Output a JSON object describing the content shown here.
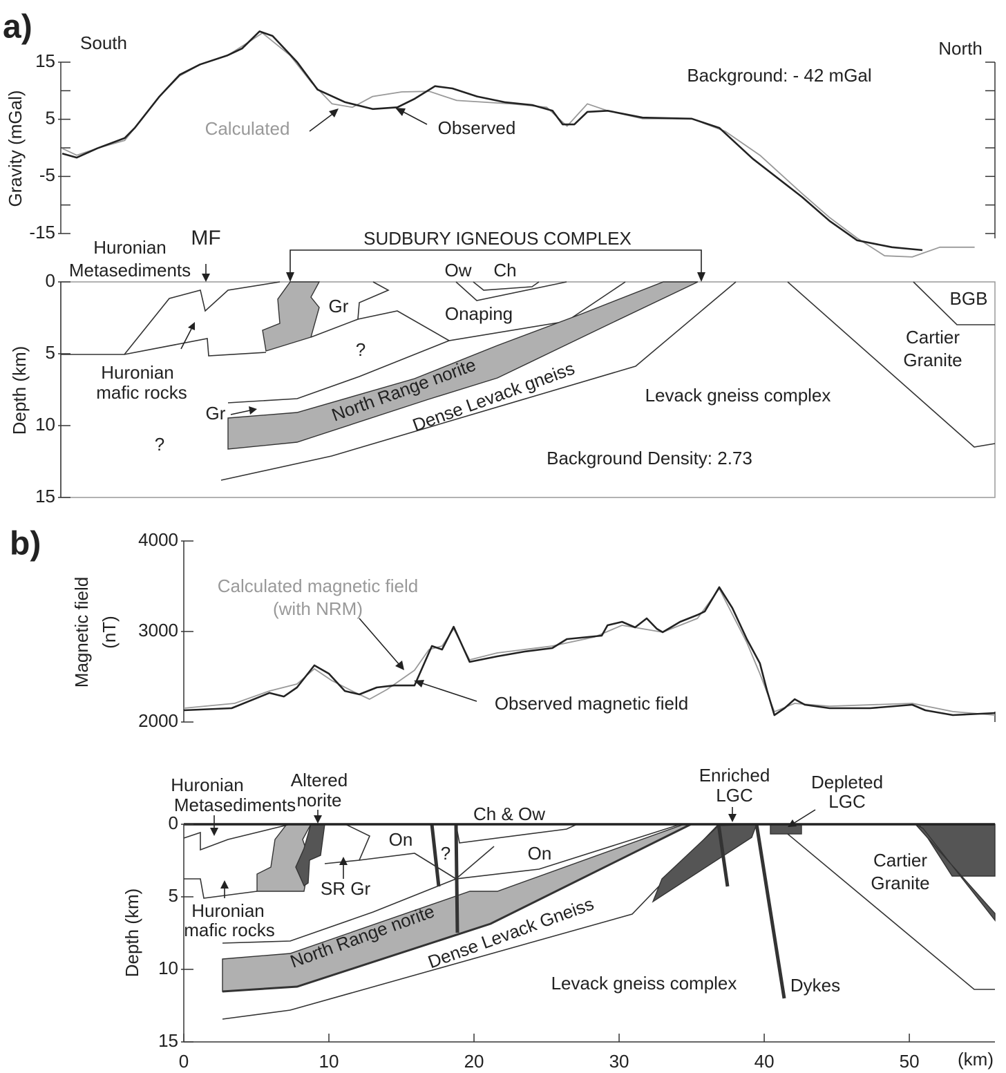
{
  "panels": [
    "a)",
    "b)"
  ],
  "chart_data": [
    {
      "type": "line",
      "ylabel": "Gravity (mGal)",
      "left_label": "South",
      "right_label": "North",
      "note": "Background: - 42 mGal",
      "xlim": [
        -8.5,
        55.9
      ],
      "ylim": [
        -15,
        15
      ],
      "yticks": [
        -15,
        -5,
        5,
        15
      ],
      "minor_yticks": [
        -10,
        0,
        10
      ],
      "right_axis": true,
      "series": [
        {
          "name": "Observed",
          "color": "#222222",
          "x": [
            -8.4,
            -7.4,
            -6.0,
            -4.1,
            -3.4,
            -1.7,
            -0.3,
            1.1,
            3.0,
            4.0,
            5.2,
            6.1,
            7.8,
            9.2,
            11.1,
            13.0,
            14.7,
            15.9,
            17.3,
            18.5,
            20.2,
            22.1,
            24.0,
            25.4,
            26.1,
            26.9,
            27.8,
            29.2,
            31.6,
            35.0,
            36.9,
            39.2,
            42.6,
            44.5,
            46.4,
            48.8,
            50.9
          ],
          "values": [
            -1.0,
            -1.7,
            -0.1,
            1.7,
            3.5,
            9.0,
            12.8,
            14.6,
            16.2,
            17.4,
            20.4,
            19.6,
            15.0,
            10.2,
            8.0,
            6.8,
            7.1,
            8.6,
            10.8,
            10.4,
            9.0,
            8.0,
            7.5,
            6.5,
            4.1,
            4.1,
            6.3,
            6.5,
            5.3,
            5.1,
            3.5,
            -1.9,
            -8.6,
            -12.8,
            -16.2,
            -17.4,
            -17.9
          ]
        },
        {
          "name": "Calculated",
          "color": "#999999",
          "x": [
            -8.4,
            -7.4,
            -6.0,
            -4.1,
            -3.4,
            -1.7,
            -0.3,
            1.1,
            3.0,
            4.5,
            5.4,
            7.3,
            8.8,
            10.2,
            11.6,
            13.0,
            15.0,
            16.9,
            18.8,
            20.7,
            22.6,
            25.0,
            26.4,
            27.8,
            29.2,
            31.6,
            35.0,
            37.3,
            39.7,
            42.6,
            44.5,
            46.4,
            48.3,
            50.2,
            52.1,
            54.5
          ],
          "values": [
            -0.1,
            -1.3,
            -0.1,
            1.3,
            3.5,
            9.0,
            12.6,
            14.6,
            16.2,
            18.6,
            20.1,
            16.2,
            11.4,
            7.7,
            7.1,
            9.0,
            9.8,
            9.9,
            8.3,
            8.0,
            7.7,
            7.1,
            3.8,
            7.7,
            6.5,
            5.1,
            5.1,
            2.9,
            -1.3,
            -8.0,
            -12.2,
            -15.8,
            -18.9,
            -19.1,
            -17.4,
            -17.4
          ]
        }
      ]
    },
    {
      "type": "section",
      "title": "SUDBURY IGNEOUS COMPLEX",
      "ylabel": "Depth (km)",
      "xlim": [
        -8.5,
        55.9
      ],
      "ylim": [
        15,
        0
      ],
      "yticks": [
        0,
        5,
        10,
        15
      ],
      "labels": [
        "Huronian",
        "Metasediments",
        "MF",
        "Ow",
        "Ch",
        "Gr",
        "Onaping",
        "BGB",
        "?",
        "Cartier",
        "Granite",
        "Huronian",
        "mafic rocks",
        "North Range norite",
        "Dense Levack gneiss",
        "Levack gneiss complex",
        "Gr",
        "?"
      ],
      "note": "Background Density: 2.73"
    },
    {
      "type": "line",
      "ylabel": [
        "Magnetic field",
        "(nT)"
      ],
      "name_note": "(with NRM)",
      "xlim": [
        0,
        55.9
      ],
      "ylim": [
        2000,
        4000
      ],
      "yticks": [
        2000,
        3000,
        4000
      ],
      "series": [
        {
          "name": "Observed magnetic field",
          "color": "#222222",
          "x": [
            0.0,
            3.3,
            5.9,
            6.9,
            7.8,
            9.0,
            10.0,
            11.1,
            12.1,
            13.3,
            14.5,
            15.9,
            17.1,
            17.8,
            18.6,
            19.7,
            21.6,
            23.5,
            25.4,
            26.4,
            28.8,
            29.2,
            30.2,
            31.1,
            31.9,
            32.6,
            33.0,
            34.2,
            35.4,
            35.9,
            36.9,
            37.8,
            38.8,
            39.7,
            40.2,
            40.7,
            41.4,
            42.1,
            42.8,
            44.5,
            47.3,
            50.2,
            51.1,
            53.0,
            55.9
          ],
          "values": [
            2130,
            2153,
            2321,
            2282,
            2382,
            2626,
            2534,
            2343,
            2305,
            2382,
            2404,
            2404,
            2840,
            2801,
            3053,
            2664,
            2725,
            2779,
            2817,
            2916,
            2954,
            3069,
            3107,
            3046,
            3145,
            3030,
            2992,
            3107,
            3183,
            3221,
            3489,
            3260,
            2916,
            2649,
            2343,
            2076,
            2153,
            2252,
            2191,
            2153,
            2153,
            2191,
            2130,
            2076,
            2099
          ]
        },
        {
          "name": "Calculated magnetic field",
          "color": "#999999",
          "x": [
            0.0,
            3.5,
            5.9,
            7.8,
            9.0,
            10.2,
            11.6,
            12.8,
            14.0,
            15.9,
            16.9,
            17.8,
            18.6,
            19.7,
            21.6,
            25.4,
            28.3,
            30.2,
            33.0,
            35.4,
            36.9,
            38.8,
            39.7,
            40.7,
            42.1,
            44.5,
            50.2,
            53.0,
            55.9
          ],
          "values": [
            2153,
            2206,
            2343,
            2420,
            2588,
            2458,
            2343,
            2252,
            2359,
            2572,
            2801,
            2840,
            3030,
            2687,
            2763,
            2840,
            2939,
            3069,
            2992,
            3145,
            3473,
            2878,
            2534,
            2114,
            2206,
            2175,
            2206,
            2115,
            2076
          ]
        }
      ]
    },
    {
      "type": "section",
      "ylabel": "Depth (km)",
      "xlabel": "(km)",
      "xlim": [
        0,
        55.9
      ],
      "ylim": [
        15,
        0
      ],
      "yticks": [
        0,
        5,
        10,
        15
      ],
      "xticks": [
        0,
        10,
        20,
        30,
        40,
        50
      ],
      "labels": [
        "Huronian",
        "Metasediments",
        "Altered",
        "norite",
        "Ch & Ow",
        "Enriched",
        "LGC",
        "Depleted",
        "LGC",
        "On",
        "On",
        "?",
        "Cartier",
        "Granite",
        "SR Gr",
        "Huronian",
        "mafic rocks",
        "North Range norite",
        "Dense Levack Gneiss",
        "Levack gneiss complex",
        "Dykes"
      ]
    }
  ]
}
